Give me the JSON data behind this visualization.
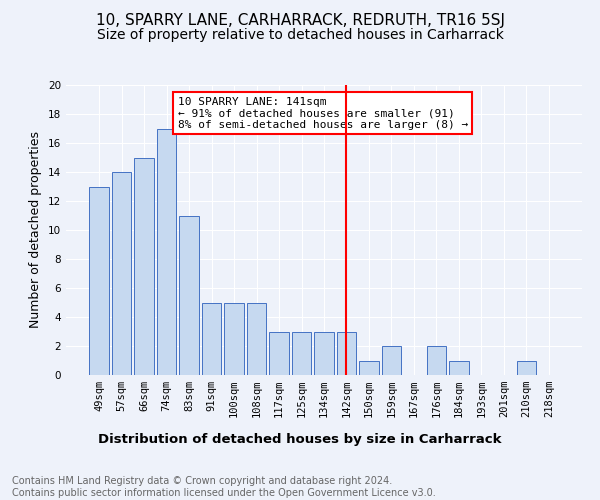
{
  "title": "10, SPARRY LANE, CARHARRACK, REDRUTH, TR16 5SJ",
  "subtitle": "Size of property relative to detached houses in Carharrack",
  "xlabel": "Distribution of detached houses by size in Carharrack",
  "ylabel": "Number of detached properties",
  "footnote": "Contains HM Land Registry data © Crown copyright and database right 2024.\nContains public sector information licensed under the Open Government Licence v3.0.",
  "categories": [
    "49sqm",
    "57sqm",
    "66sqm",
    "74sqm",
    "83sqm",
    "91sqm",
    "100sqm",
    "108sqm",
    "117sqm",
    "125sqm",
    "134sqm",
    "142sqm",
    "150sqm",
    "159sqm",
    "167sqm",
    "176sqm",
    "184sqm",
    "193sqm",
    "201sqm",
    "210sqm",
    "218sqm"
  ],
  "values": [
    13,
    14,
    15,
    17,
    11,
    5,
    5,
    5,
    3,
    3,
    3,
    3,
    1,
    2,
    0,
    2,
    1,
    0,
    0,
    1,
    0
  ],
  "bar_color": "#c6d9f0",
  "bar_edge_color": "#4472c4",
  "highlight_index": 11,
  "annotation_text": "10 SPARRY LANE: 141sqm\n← 91% of detached houses are smaller (91)\n8% of semi-detached houses are larger (8) →",
  "annotation_box_color": "white",
  "annotation_box_edge_color": "red",
  "vline_color": "red",
  "ylim": [
    0,
    20
  ],
  "yticks": [
    0,
    2,
    4,
    6,
    8,
    10,
    12,
    14,
    16,
    18,
    20
  ],
  "background_color": "#eef2fa",
  "grid_color": "white",
  "title_fontsize": 11,
  "subtitle_fontsize": 10,
  "xlabel_fontsize": 9.5,
  "ylabel_fontsize": 9,
  "footnote_fontsize": 7,
  "tick_fontsize": 7.5,
  "annotation_fontsize": 8
}
